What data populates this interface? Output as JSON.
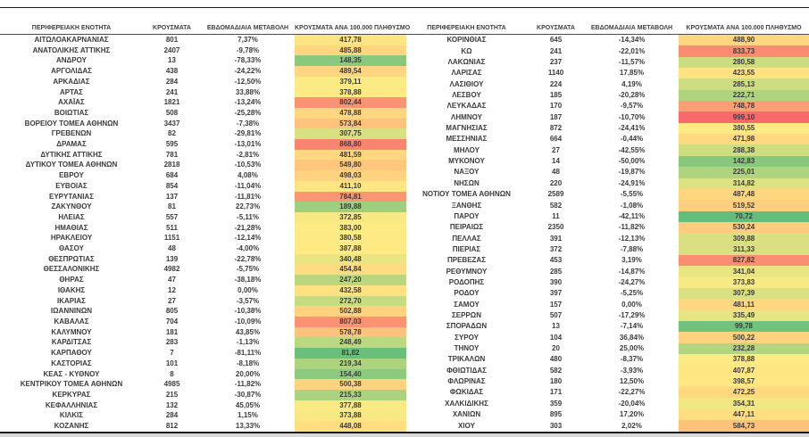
{
  "table": {
    "headers": [
      "ΠΕΡΙΦΕΡΕΙΑΚΗ ΕΝΟΤΗΤΑ",
      "ΚΡΟΥΣΜΑΤΑ",
      "ΕΒΔΟΜΑΔΙΑΙΑ ΜΕΤΑΒΟΛΗ",
      "ΚΡΟΥΣΜΑΤΑ ΑΝΑ 100.000 ΠΛΗΘΥΣΜΟ"
    ],
    "left_rows": [
      {
        "region": "ΑΙΤΩΛΟΑΚΑΡΝΑΝΙΑΣ",
        "cases": "801",
        "change": "7,37%",
        "per_100k": "417,78"
      },
      {
        "region": "ΑΝΑΤΟΛΙΚΗΣ ΑΤΤΙΚΗΣ",
        "cases": "2407",
        "change": "-9,78%",
        "per_100k": "485,88"
      },
      {
        "region": "ΑΝΔΡΟΥ",
        "cases": "13",
        "change": "-78,33%",
        "per_100k": "148,35"
      },
      {
        "region": "ΑΡΓΟΛΙΔΑΣ",
        "cases": "438",
        "change": "-24,22%",
        "per_100k": "489,54"
      },
      {
        "region": "ΑΡΚΑΔΙΑΣ",
        "cases": "284",
        "change": "-12,50%",
        "per_100k": "379,11"
      },
      {
        "region": "ΑΡΤΑΣ",
        "cases": "241",
        "change": "33,88%",
        "per_100k": "378,88"
      },
      {
        "region": "ΑΧΑΪΑΣ",
        "cases": "1821",
        "change": "-13,24%",
        "per_100k": "802,44"
      },
      {
        "region": "ΒΟΙΩΤΙΑΣ",
        "cases": "508",
        "change": "-25,28%",
        "per_100k": "478,88"
      },
      {
        "region": "ΒΟΡΕΙΟΥ ΤΟΜΕΑ ΑΘΗΝΩΝ",
        "cases": "3437",
        "change": "-7,38%",
        "per_100k": "573,84"
      },
      {
        "region": "ΓΡΕΒΕΝΩΝ",
        "cases": "82",
        "change": "-29,81%",
        "per_100k": "307,75"
      },
      {
        "region": "ΔΡΑΜΑΣ",
        "cases": "595",
        "change": "-13,01%",
        "per_100k": "868,80"
      },
      {
        "region": "ΔΥΤΙΚΗΣ ΑΤΤΙΚΗΣ",
        "cases": "781",
        "change": "-2,81%",
        "per_100k": "481,59"
      },
      {
        "region": "ΔΥΤΙΚΟΥ ΤΟΜΕΑ ΑΘΗΝΩΝ",
        "cases": "2818",
        "change": "-10,53%",
        "per_100k": "549,80"
      },
      {
        "region": "ΕΒΡΟΥ",
        "cases": "684",
        "change": "4,08%",
        "per_100k": "498,03"
      },
      {
        "region": "ΕΥΒΟΙΑΣ",
        "cases": "854",
        "change": "-11,04%",
        "per_100k": "411,10"
      },
      {
        "region": "ΕΥΡΥΤΑΝΙΑΣ",
        "cases": "137",
        "change": "-11,81%",
        "per_100k": "784,81"
      },
      {
        "region": "ΖΑΚΥΝΘΟΥ",
        "cases": "81",
        "change": "22,73%",
        "per_100k": "189,88"
      },
      {
        "region": "ΗΛΕΙΑΣ",
        "cases": "557",
        "change": "-5,11%",
        "per_100k": "372,85"
      },
      {
        "region": "ΗΜΑΘΙΑΣ",
        "cases": "511",
        "change": "-21,28%",
        "per_100k": "383,00"
      },
      {
        "region": "ΗΡΑΚΛΕΙΟΥ",
        "cases": "1151",
        "change": "-12,14%",
        "per_100k": "380,58"
      },
      {
        "region": "ΘΑΣΟΥ",
        "cases": "48",
        "change": "-4,00%",
        "per_100k": "387,88"
      },
      {
        "region": "ΘΕΣΠΡΩΤΙΑΣ",
        "cases": "139",
        "change": "-22,78%",
        "per_100k": "340,48"
      },
      {
        "region": "ΘΕΣΣΑΛΟΝΙΚΗΣ",
        "cases": "4982",
        "change": "-5,75%",
        "per_100k": "454,84"
      },
      {
        "region": "ΘΗΡΑΣ",
        "cases": "47",
        "change": "-38,18%",
        "per_100k": "247,20"
      },
      {
        "region": "ΙΘΑΚΗΣ",
        "cases": "12",
        "change": "0,00%",
        "per_100k": "432,58"
      },
      {
        "region": "ΙΚΑΡΙΑΣ",
        "cases": "27",
        "change": "-3,57%",
        "per_100k": "272,70"
      },
      {
        "region": "ΙΩΑΝΝΙΝΩΝ",
        "cases": "805",
        "change": "-10,38%",
        "per_100k": "502,88"
      },
      {
        "region": "ΚΑΒΑΛΑΣ",
        "cases": "704",
        "change": "-10,09%",
        "per_100k": "807,03"
      },
      {
        "region": "ΚΑΛΥΜΝΟΥ",
        "cases": "181",
        "change": "43,85%",
        "per_100k": "578,78"
      },
      {
        "region": "ΚΑΡΔΙΤΣΑΣ",
        "cases": "283",
        "change": "-1,13%",
        "per_100k": "248,49"
      },
      {
        "region": "ΚΑΡΠΑΘΟΥ",
        "cases": "7",
        "change": "-81,11%",
        "per_100k": "81,82"
      },
      {
        "region": "ΚΑΣΤΟΡΙΑΣ",
        "cases": "101",
        "change": "-8,18%",
        "per_100k": "219,34"
      },
      {
        "region": "ΚΕΑΣ - ΚΥΘΝΟΥ",
        "cases": "8",
        "change": "20,00%",
        "per_100k": "154,40"
      },
      {
        "region": "ΚΕΝΤΡΙΚΟΥ ΤΟΜΕΑ ΑΘΗΝΩΝ",
        "cases": "4985",
        "change": "-11,82%",
        "per_100k": "500,38"
      },
      {
        "region": "ΚΕΡΚΥΡΑΣ",
        "cases": "215",
        "change": "-30,87%",
        "per_100k": "215,33"
      },
      {
        "region": "ΚΕΦΑΛΛΗΝΙΑΣ",
        "cases": "132",
        "change": "45,05%",
        "per_100k": "377,88"
      },
      {
        "region": "ΚΙΛΚΙΣ",
        "cases": "284",
        "change": "1,15%",
        "per_100k": "373,88"
      },
      {
        "region": "ΚΟΖΑΝΗΣ",
        "cases": "812",
        "change": "13,33%",
        "per_100k": "448,08"
      }
    ],
    "right_rows": [
      {
        "region": "ΚΟΡΙΝΘΙΑΣ",
        "cases": "645",
        "change": "-14,34%",
        "per_100k": "488,90"
      },
      {
        "region": "ΚΩ",
        "cases": "241",
        "change": "-22,01%",
        "per_100k": "833,73"
      },
      {
        "region": "ΛΑΚΩΝΙΑΣ",
        "cases": "237",
        "change": "-11,57%",
        "per_100k": "280,58"
      },
      {
        "region": "ΛΑΡΙΣΑΣ",
        "cases": "1140",
        "change": "17,85%",
        "per_100k": "423,55"
      },
      {
        "region": "ΛΑΣΙΘΙΟΥ",
        "cases": "224",
        "change": "4,19%",
        "per_100k": "285,13"
      },
      {
        "region": "ΛΕΣΒΟΥ",
        "cases": "185",
        "change": "-20,28%",
        "per_100k": "222,71"
      },
      {
        "region": "ΛΕΥΚΑΔΑΣ",
        "cases": "170",
        "change": "-9,57%",
        "per_100k": "748,78"
      },
      {
        "region": "ΛΗΜΝΟΥ",
        "cases": "187",
        "change": "-10,70%",
        "per_100k": "999,10"
      },
      {
        "region": "ΜΑΓΝΗΣΙΑΣ",
        "cases": "872",
        "change": "-24,41%",
        "per_100k": "380,55"
      },
      {
        "region": "ΜΕΣΣΗΝΙΑΣ",
        "cases": "664",
        "change": "-0,44%",
        "per_100k": "471,98"
      },
      {
        "region": "ΜΗΛΟΥ",
        "cases": "27",
        "change": "-42,55%",
        "per_100k": "288,38"
      },
      {
        "region": "ΜΥΚΟΝΟΥ",
        "cases": "14",
        "change": "-50,00%",
        "per_100k": "142,83"
      },
      {
        "region": "ΝΑΞΟΥ",
        "cases": "48",
        "change": "-19,87%",
        "per_100k": "225,01"
      },
      {
        "region": "ΝΗΣΩΝ",
        "cases": "220",
        "change": "-24,91%",
        "per_100k": "314,82"
      },
      {
        "region": "ΝΟΤΙΟΥ ΤΟΜΕΑ ΑΘΗΝΩΝ",
        "cases": "2589",
        "change": "-5,55%",
        "per_100k": "487,48"
      },
      {
        "region": "ΞΑΝΘΗΣ",
        "cases": "582",
        "change": "-1,08%",
        "per_100k": "519,52"
      },
      {
        "region": "ΠΑΡΟΥ",
        "cases": "11",
        "change": "-42,11%",
        "per_100k": "70,72"
      },
      {
        "region": "ΠΕΙΡΑΙΩΣ",
        "cases": "2350",
        "change": "-11,82%",
        "per_100k": "530,24"
      },
      {
        "region": "ΠΕΛΛΑΣ",
        "cases": "391",
        "change": "-12,13%",
        "per_100k": "309,88"
      },
      {
        "region": "ΠΙΕΡΙΑΣ",
        "cases": "372",
        "change": "-7,88%",
        "per_100k": "311,33"
      },
      {
        "region": "ΠΡΕΒΕΖΑΣ",
        "cases": "453",
        "change": "3,19%",
        "per_100k": "827,82"
      },
      {
        "region": "ΡΕΘΥΜΝΟΥ",
        "cases": "285",
        "change": "-14,87%",
        "per_100k": "341,04"
      },
      {
        "region": "ΡΟΔΟΠΗΣ",
        "cases": "390",
        "change": "-24,27%",
        "per_100k": "373,83"
      },
      {
        "region": "ΡΟΔΟΥ",
        "cases": "397",
        "change": "-5,25%",
        "per_100k": "307,39"
      },
      {
        "region": "ΣΑΜΟΥ",
        "cases": "157",
        "change": "0,00%",
        "per_100k": "481,11"
      },
      {
        "region": "ΣΕΡΡΩΝ",
        "cases": "507",
        "change": "-17,29%",
        "per_100k": "335,49"
      },
      {
        "region": "ΣΠΟΡΑΔΩΝ",
        "cases": "13",
        "change": "-7,14%",
        "per_100k": "99,78"
      },
      {
        "region": "ΣΥΡΟΥ",
        "cases": "104",
        "change": "36,84%",
        "per_100k": "500,22"
      },
      {
        "region": "ΤΗΝΟΥ",
        "cases": "20",
        "change": "25,00%",
        "per_100k": "232,28"
      },
      {
        "region": "ΤΡΙΚΑΛΩΝ",
        "cases": "480",
        "change": "-8,37%",
        "per_100k": "378,88"
      },
      {
        "region": "ΦΘΙΩΤΙΔΑΣ",
        "cases": "582",
        "change": "-3,93%",
        "per_100k": "407,87"
      },
      {
        "region": "ΦΛΩΡΙΝΑΣ",
        "cases": "180",
        "change": "12,50%",
        "per_100k": "398,57"
      },
      {
        "region": "ΦΩΚΙΔΑΣ",
        "cases": "171",
        "change": "-22,27%",
        "per_100k": "472,25"
      },
      {
        "region": "ΧΑΛΚΙΔΙΚΗΣ",
        "cases": "359",
        "change": "-20,04%",
        "per_100k": "354,31"
      },
      {
        "region": "ΧΑΝΙΩΝ",
        "cases": "895",
        "change": "17,20%",
        "per_100k": "447,11"
      },
      {
        "region": "ΧΙΟΥ",
        "cases": "303",
        "change": "2,02%",
        "per_100k": "584,73"
      }
    ]
  },
  "colors": {
    "scale_min_green": "#63BE7B",
    "scale_mid_yellow": "#FFEB84",
    "scale_max_red": "#F8696B"
  }
}
